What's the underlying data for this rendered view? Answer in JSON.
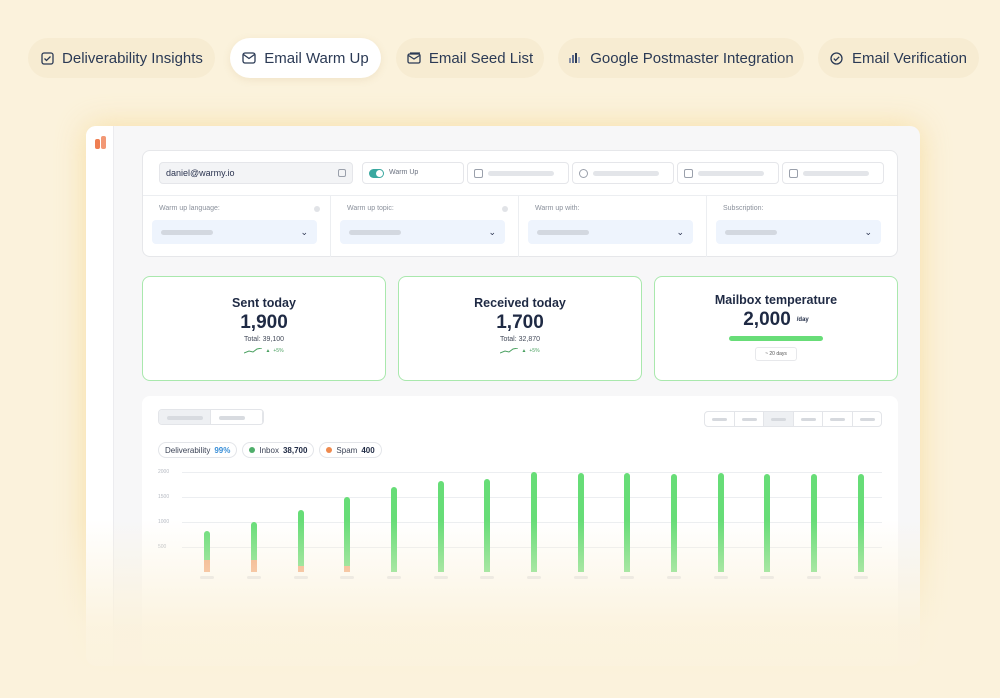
{
  "tabs": [
    {
      "label": "Deliverability Insights",
      "icon": "check-square-icon"
    },
    {
      "label": "Email Warm Up",
      "icon": "mail-icon",
      "active": true
    },
    {
      "label": "Email Seed List",
      "icon": "mail-list-icon"
    },
    {
      "label": "Google Postmaster Integration",
      "icon": "bars-icon"
    },
    {
      "label": "Email Verification",
      "icon": "check-circle-icon"
    }
  ],
  "settings": {
    "email": "daniel@warmy.io",
    "warmup_toggle_label": "Warm Up",
    "warmup_enabled": true,
    "selects": [
      {
        "label": "Warm up language:"
      },
      {
        "label": "Warm up topic:"
      },
      {
        "label": "Warm up with:"
      },
      {
        "label": "Subscription:"
      }
    ]
  },
  "stats": {
    "sent": {
      "title": "Sent today",
      "value": "1,900",
      "total": "Total: 39,100",
      "trend": "+5%"
    },
    "received": {
      "title": "Received today",
      "value": "1,700",
      "total": "Total: 32,870",
      "trend": "+5%"
    },
    "temperature": {
      "title": "Mailbox temperature",
      "value": "2,000",
      "unit": "/day",
      "badge": "~ 20 days"
    }
  },
  "chart_legend": {
    "deliverability_label": "Deliverability",
    "deliverability_value": "99%",
    "inbox_label": "Inbox",
    "inbox_value": "38,700",
    "spam_label": "Spam",
    "spam_value": "400"
  },
  "colors": {
    "inbox": "#67dd77",
    "spam": "#f2a77a",
    "accent": "#3aa8a0"
  },
  "chart_data": {
    "type": "bar",
    "ylim": [
      0,
      2000
    ],
    "yticks": [
      "2000",
      "1500",
      "1000",
      "500"
    ],
    "series": [
      {
        "name": "Inbox",
        "values": [
          820,
          1000,
          1250,
          1500,
          1700,
          1820,
          1860,
          2000,
          1980,
          1980,
          1960,
          1980,
          1970,
          1970,
          1970
        ]
      },
      {
        "name": "Spam",
        "values": [
          250,
          250,
          120,
          120,
          0,
          0,
          0,
          0,
          0,
          0,
          0,
          0,
          0,
          0,
          0
        ]
      }
    ]
  }
}
